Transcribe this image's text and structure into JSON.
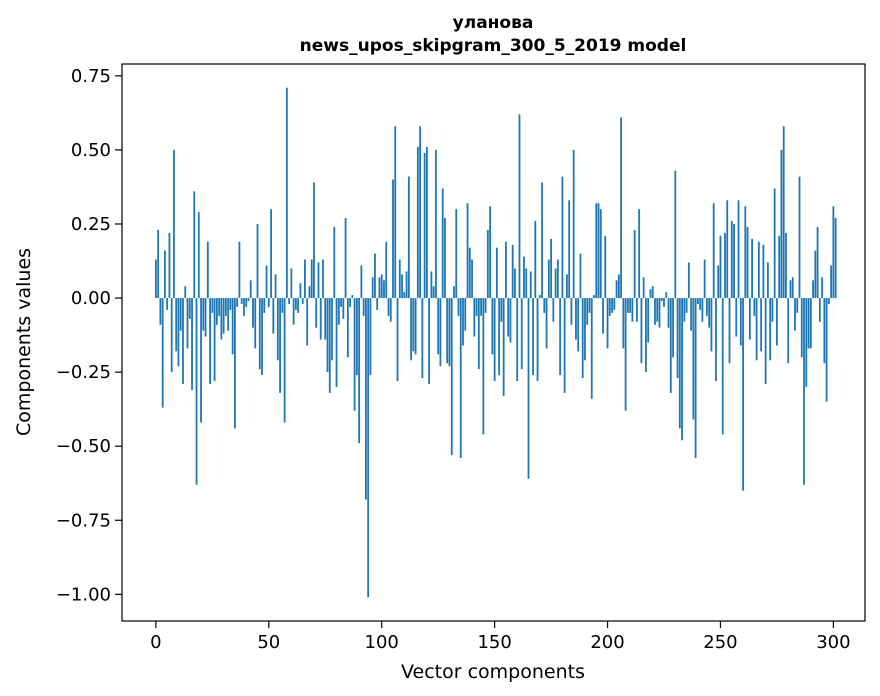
{
  "chart_data": {
    "type": "bar",
    "title_line1": "уланова",
    "title_line2": "news_upos_skipgram_300_5_2019 model",
    "xlabel": "Vector components",
    "ylabel": "Components values",
    "xlim": [
      -15,
      314
    ],
    "ylim": [
      -1.09,
      0.79
    ],
    "xticks": [
      0,
      50,
      100,
      150,
      200,
      250,
      300
    ],
    "xtick_labels": [
      "0",
      "50",
      "100",
      "150",
      "200",
      "250",
      "300"
    ],
    "yticks": [
      0.75,
      0.5,
      0.25,
      0.0,
      -0.25,
      -0.5,
      -0.75,
      -1.0
    ],
    "ytick_labels": [
      "0.75",
      "0.50",
      "0.25",
      "0.00",
      "−0.25",
      "−0.50",
      "−0.75",
      "−1.00"
    ],
    "bar_color": "#1f77b4",
    "values": [
      0.13,
      0.23,
      -0.09,
      -0.37,
      0.16,
      -0.04,
      0.22,
      -0.25,
      0.5,
      -0.18,
      -0.23,
      -0.11,
      -0.29,
      0.04,
      -0.17,
      -0.07,
      -0.31,
      0.36,
      -0.63,
      0.29,
      -0.42,
      -0.11,
      -0.13,
      0.19,
      -0.29,
      -0.05,
      -0.28,
      -0.09,
      -0.06,
      -0.14,
      -0.12,
      -0.06,
      -0.11,
      -0.04,
      -0.19,
      -0.44,
      -0.03,
      0.19,
      -0.02,
      -0.06,
      -0.03,
      -0.01,
      0.06,
      -0.1,
      -0.17,
      0.25,
      -0.24,
      -0.26,
      -0.05,
      0.11,
      -0.03,
      0.3,
      -0.12,
      0.08,
      -0.21,
      -0.32,
      -0.05,
      -0.42,
      0.71,
      -0.02,
      0.1,
      -0.09,
      -0.04,
      -0.05,
      0.05,
      -0.02,
      0.13,
      -0.16,
      0.04,
      0.13,
      0.39,
      -0.1,
      0.12,
      -0.14,
      0.13,
      -0.14,
      -0.25,
      -0.32,
      -0.21,
      0.24,
      -0.3,
      -0.09,
      -0.03,
      -0.07,
      0.27,
      -0.2,
      -0.03,
      0.01,
      -0.38,
      -0.26,
      -0.49,
      0.11,
      -0.06,
      -0.68,
      -1.01,
      -0.26,
      0.07,
      0.15,
      -0.04,
      0.07,
      0.08,
      0.06,
      0.19,
      -0.06,
      -0.08,
      0.4,
      0.58,
      -0.28,
      0.13,
      0.08,
      0.02,
      0.09,
      0.41,
      -0.21,
      -0.18,
      -0.19,
      0.51,
      0.58,
      -0.27,
      0.49,
      0.51,
      -0.29,
      0.09,
      0.04,
      0.5,
      -0.19,
      -0.23,
      0.37,
      0.27,
      -0.22,
      -0.23,
      -0.53,
      0.04,
      0.3,
      -0.06,
      -0.54,
      -0.16,
      -0.11,
      0.32,
      0.17,
      0.13,
      -0.13,
      -0.06,
      -0.24,
      -0.06,
      -0.46,
      -0.05,
      0.23,
      0.31,
      -0.19,
      -0.28,
      0.17,
      -0.26,
      -0.08,
      -0.33,
      0.19,
      -0.13,
      -0.15,
      0.18,
      0.1,
      -0.28,
      0.62,
      -0.24,
      0.14,
      0.1,
      -0.61,
      0.09,
      -0.26,
      0.26,
      -0.28,
      0.01,
      0.39,
      -0.05,
      -0.17,
      0.13,
      0.2,
      -0.08,
      0.1,
      0.13,
      -0.26,
      0.41,
      -0.32,
      0.08,
      0.33,
      -0.09,
      0.5,
      -0.14,
      -0.18,
      0.15,
      -0.27,
      -0.21,
      -0.09,
      -0.05,
      -0.34,
      0.01,
      0.32,
      0.32,
      0.3,
      -0.12,
      0.21,
      -0.17,
      -0.06,
      -0.05,
      -0.04,
      0.06,
      0.08,
      0.61,
      -0.17,
      -0.38,
      -0.05,
      -0.05,
      -0.08,
      0.23,
      -0.08,
      0.3,
      -0.22,
      0.07,
      -0.25,
      -0.15,
      0.03,
      0.04,
      -0.09,
      -0.08,
      -0.1,
      -0.01,
      -0.03,
      0.02,
      -0.1,
      -0.32,
      -0.2,
      0.43,
      -0.27,
      -0.44,
      -0.48,
      -0.08,
      -0.05,
      0.12,
      -0.11,
      -0.41,
      -0.54,
      -0.02,
      -0.04,
      -0.08,
      0.13,
      -0.06,
      -0.1,
      -0.18,
      0.32,
      -0.28,
      0.11,
      0.21,
      -0.46,
      0.22,
      0.33,
      -0.22,
      0.26,
      0.25,
      -0.13,
      0.33,
      -0.16,
      -0.65,
      0.31,
      0.24,
      -0.14,
      0.2,
      -0.06,
      -0.21,
      0.19,
      -0.18,
      0.18,
      -0.29,
      0.12,
      -0.21,
      -0.08,
      0.37,
      -0.16,
      0.21,
      0.5,
      0.58,
      0.22,
      -0.22,
      0.06,
      0.07,
      -0.11,
      -0.05,
      0.41,
      -0.2,
      -0.63,
      -0.3,
      -0.17,
      -0.17,
      0.06,
      0.16,
      0.24,
      -0.08,
      0.07,
      -0.22,
      -0.35,
      -0.02,
      0.11,
      0.31,
      0.27
    ]
  }
}
